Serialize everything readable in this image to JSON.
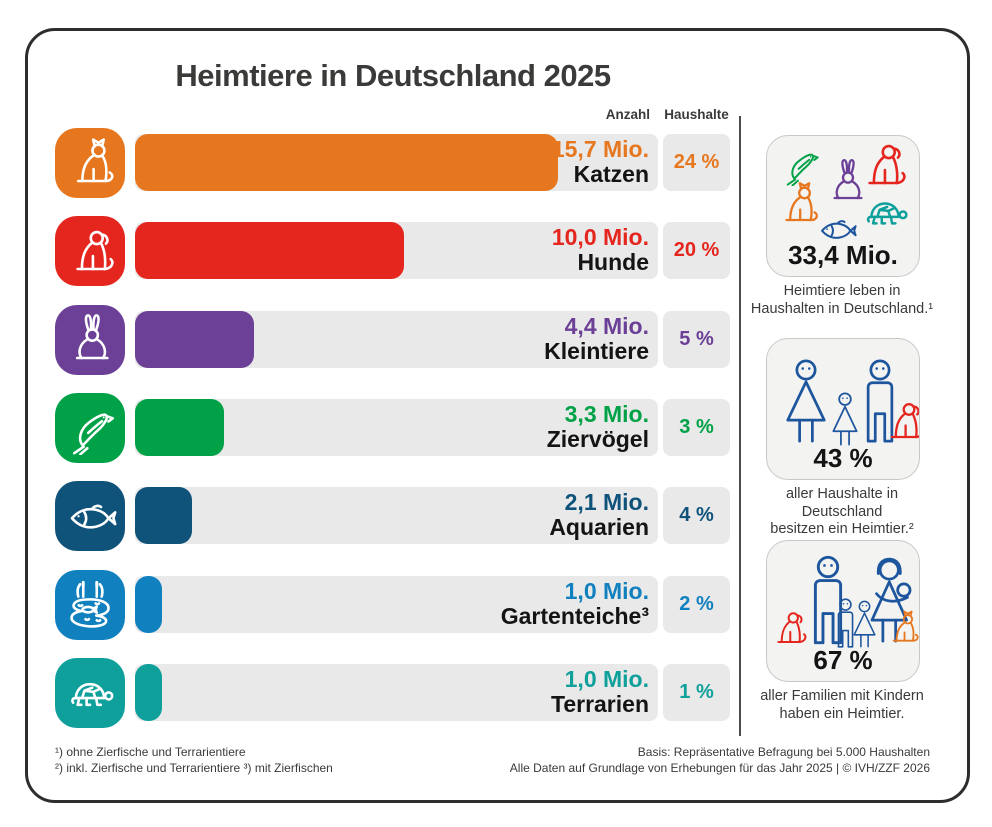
{
  "title": "Heimtiere in Deutschland 2025",
  "columns": {
    "anzahl": "Anzahl",
    "haushalte": "Haushalte"
  },
  "palette": {
    "orange": "#E6771F",
    "red": "#E5261F",
    "purple": "#6B4096",
    "green": "#00A147",
    "petrol": "#0F527A",
    "blue": "#1180BE",
    "teal": "#0FA09C",
    "family_blue": "#1E569E",
    "ink": "#3A3A39",
    "track_gray": "#E9E9E9"
  },
  "chart_data": {
    "type": "bar",
    "orientation": "horizontal",
    "title": "Heimtiere in Deutschland 2025",
    "categories": [
      "Katzen",
      "Hunde",
      "Kleintiere",
      "Ziervögel",
      "Aquarien",
      "Gartenteiche",
      "Terrarien"
    ],
    "series": [
      {
        "name": "Anzahl (Mio.)",
        "values": [
          15.7,
          10.0,
          4.4,
          3.3,
          2.1,
          1.0,
          1.0
        ]
      },
      {
        "name": "Haushalte (%)",
        "values": [
          24,
          20,
          5,
          3,
          4,
          2,
          1
        ]
      }
    ],
    "x_max_mio": 15.7,
    "grid": false,
    "legend_position": "none"
  },
  "rows": [
    {
      "icon": "cat-icon",
      "color_key": "orange",
      "value": "15,7 Mio.",
      "value_num": 15.7,
      "label": "Katzen",
      "percent": "24 %"
    },
    {
      "icon": "dog-icon",
      "color_key": "red",
      "value": "10,0 Mio.",
      "value_num": 10.0,
      "label": "Hunde",
      "percent": "20 %"
    },
    {
      "icon": "rabbit-icon",
      "color_key": "purple",
      "value": "4,4 Mio.",
      "value_num": 4.4,
      "label": "Kleintiere",
      "percent": "5 %"
    },
    {
      "icon": "bird-icon",
      "color_key": "green",
      "value": "3,3 Mio.",
      "value_num": 3.3,
      "label": "Ziervögel",
      "percent": "3 %"
    },
    {
      "icon": "fish-icon",
      "color_key": "petrol",
      "value": "2,1 Mio.",
      "value_num": 2.1,
      "label": "Aquarien",
      "percent": "4 %"
    },
    {
      "icon": "pond-icon",
      "color_key": "blue",
      "value": "1,0 Mio.",
      "value_num": 1.0,
      "label": "Gartenteiche³",
      "percent": "2 %"
    },
    {
      "icon": "turtle-icon",
      "color_key": "teal",
      "value": "1,0 Mio.",
      "value_num": 1.0,
      "label": "Terrarien",
      "percent": "1 %"
    }
  ],
  "sidebar": {
    "boxes": [
      {
        "stat": "33,4 Mio.",
        "caption_line1": "Heimtiere leben in",
        "caption_line2": "Haushalten in Deutschland.¹"
      },
      {
        "stat": "43 %",
        "caption_line1": "aller Haushalte in Deutschland",
        "caption_line2": "besitzen ein Heimtier.²"
      },
      {
        "stat": "67 %",
        "caption_line1": "aller Familien mit Kindern",
        "caption_line2": "haben ein Heimtier."
      }
    ]
  },
  "footnotes": {
    "line1": "¹) ohne Zierfische und Terrarientiere",
    "line2": "²) inkl. Zierfische und Terrarientiere  ³) mit Zierfischen"
  },
  "source": {
    "line1": "Basis: Repräsentative Befragung bei 5.000 Haushalten",
    "line2": "Alle Daten auf Grundlage von Erhebungen für das Jahr 2025 | © IVH/ZZF 2026"
  }
}
